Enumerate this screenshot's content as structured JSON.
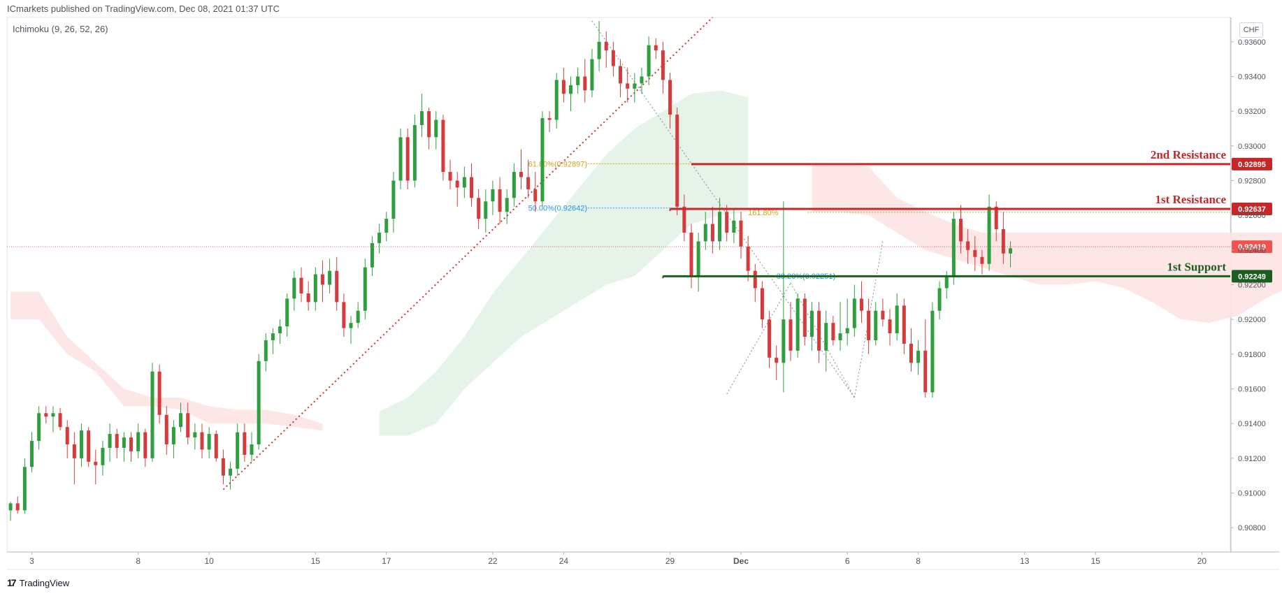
{
  "header": {
    "publisher": "ICmarkets published on TradingView.com, Dec 08, 2021 01:37 UTC",
    "indicator": "Ichimoku (9, 26, 52, 26)",
    "currency": "CHF"
  },
  "footer": {
    "brand": "TradingView",
    "logo_text": "17"
  },
  "colors": {
    "bull": "#26a69a",
    "bear": "#ef5350",
    "bull_candle": "#2e9e3e",
    "bear_candle": "#d63b3b",
    "resistance": "#c62828",
    "support": "#1b5e20",
    "fib_gold": "#d4a017",
    "fib_blue": "#2196f3",
    "cloud_green": "#e3f2e6",
    "cloud_red": "#fde3e3",
    "grid": "#f0f3fa",
    "axis_text": "#50535e"
  },
  "chart_data": {
    "type": "candlestick",
    "price_axis": {
      "ticks": [
        "0.93600",
        "0.93400",
        "0.93200",
        "0.93000",
        "0.92800",
        "0.92600",
        "0.92400",
        "0.92200",
        "0.92000",
        "0.91800",
        "0.91600",
        "0.91400",
        "0.91200",
        "0.91000",
        "0.90800"
      ],
      "ylim": [
        0.9066,
        0.9374
      ]
    },
    "time_axis": {
      "labels": [
        {
          "text": "3",
          "index": 3
        },
        {
          "text": "8",
          "index": 18
        },
        {
          "text": "10",
          "index": 28
        },
        {
          "text": "15",
          "index": 43
        },
        {
          "text": "17",
          "index": 53
        },
        {
          "text": "22",
          "index": 68
        },
        {
          "text": "24",
          "index": 78
        },
        {
          "text": "29",
          "index": 93
        },
        {
          "text": "Dec",
          "index": 103
        },
        {
          "text": "6",
          "index": 118
        },
        {
          "text": "8",
          "index": 128
        },
        {
          "text": "13",
          "index": 143
        },
        {
          "text": "15",
          "index": 153
        },
        {
          "text": "20",
          "index": 168
        }
      ],
      "xlim": [
        -0.5,
        172
      ]
    },
    "levels": [
      {
        "name": "2nd Resistance",
        "price": 0.92895,
        "price_label": "0.92895",
        "color": "resistance",
        "start_index": 96
      },
      {
        "name": "1st Resistance",
        "price": 0.92637,
        "price_label": "0.92637",
        "color": "resistance",
        "start_index": 93
      },
      {
        "name": "1st Support",
        "price": 0.92249,
        "price_label": "0.92249",
        "color": "support",
        "start_index": 92
      }
    ],
    "last_price": {
      "price": 0.92419,
      "label": "0.92419"
    },
    "fib_labels": [
      {
        "text": "61.80%(0.92897)",
        "price": 0.92897,
        "color": "fib_gold",
        "index": 73,
        "end_index": 172
      },
      {
        "text": "50.00%(0.92642)",
        "price": 0.92642,
        "color": "fib_blue",
        "index": 73,
        "end_index": 95
      },
      {
        "text": "161.80%",
        "price": 0.92617,
        "color": "fib_gold",
        "index": 104,
        "end_index": 172
      },
      {
        "text": "38.20%(0.92251)",
        "price": 0.92251,
        "color": "fib_blue",
        "index": 108,
        "end_index": 117
      }
    ],
    "trendline": {
      "from": {
        "index": 30,
        "price": 0.9102
      },
      "to": {
        "index": 99,
        "price": 0.9374
      }
    },
    "fib_swing_lines": [
      {
        "from": {
          "index": 82,
          "price": 0.9372
        },
        "to": {
          "index": 119,
          "price": 0.9155
        }
      },
      {
        "from": {
          "index": 101,
          "price": 0.9157
        },
        "to": {
          "index": 110,
          "price": 0.9221
        }
      },
      {
        "from": {
          "index": 110,
          "price": 0.9221
        },
        "to": {
          "index": 119,
          "price": 0.9155
        }
      },
      {
        "from": {
          "index": 119,
          "price": 0.9155
        },
        "to": {
          "index": 123,
          "price": 0.9245
        }
      }
    ],
    "cloud": {
      "green": {
        "start_index": 52,
        "upper": [
          0.9147,
          0.9155,
          0.917,
          0.919,
          0.9215,
          0.9235,
          0.9255,
          0.9275,
          0.9295,
          0.931,
          0.932,
          0.933,
          0.9332,
          0.9328
        ],
        "lower": [
          0.9133,
          0.9133,
          0.914,
          0.916,
          0.9175,
          0.919,
          0.92,
          0.921,
          0.922,
          0.9225,
          0.924,
          0.9255,
          0.926,
          0.9262
        ]
      },
      "red": {
        "start_index": 113,
        "upper": [
          0.929,
          0.929,
          0.9288,
          0.927,
          0.9262,
          0.9255,
          0.925,
          0.925,
          0.925,
          0.925,
          0.925,
          0.925,
          0.925,
          0.925,
          0.925,
          0.925,
          0.925,
          0.925,
          0.925,
          0.925
        ],
        "lower": [
          0.9262,
          0.9262,
          0.926,
          0.925,
          0.924,
          0.9235,
          0.923,
          0.9225,
          0.922,
          0.922,
          0.9222,
          0.9218,
          0.921,
          0.92,
          0.9198,
          0.9202,
          0.9212,
          0.922,
          0.9225,
          0.9228
        ]
      }
    },
    "candles": [
      {
        "o": 0.909,
        "h": 0.9095,
        "l": 0.9084,
        "c": 0.9094
      },
      {
        "o": 0.9094,
        "h": 0.9098,
        "l": 0.9088,
        "c": 0.909
      },
      {
        "o": 0.909,
        "h": 0.912,
        "l": 0.9088,
        "c": 0.9115
      },
      {
        "o": 0.9115,
        "h": 0.9135,
        "l": 0.9112,
        "c": 0.913
      },
      {
        "o": 0.913,
        "h": 0.915,
        "l": 0.9125,
        "c": 0.9146
      },
      {
        "o": 0.9146,
        "h": 0.915,
        "l": 0.914,
        "c": 0.9144
      },
      {
        "o": 0.9144,
        "h": 0.915,
        "l": 0.9135,
        "c": 0.9146
      },
      {
        "o": 0.9146,
        "h": 0.9149,
        "l": 0.9136,
        "c": 0.9138
      },
      {
        "o": 0.9138,
        "h": 0.9142,
        "l": 0.912,
        "c": 0.9128
      },
      {
        "o": 0.9128,
        "h": 0.9135,
        "l": 0.9105,
        "c": 0.912
      },
      {
        "o": 0.912,
        "h": 0.914,
        "l": 0.9115,
        "c": 0.9136
      },
      {
        "o": 0.9136,
        "h": 0.9138,
        "l": 0.9115,
        "c": 0.9118
      },
      {
        "o": 0.9118,
        "h": 0.9125,
        "l": 0.9105,
        "c": 0.9116
      },
      {
        "o": 0.9116,
        "h": 0.913,
        "l": 0.911,
        "c": 0.9126
      },
      {
        "o": 0.9126,
        "h": 0.914,
        "l": 0.9118,
        "c": 0.9134
      },
      {
        "o": 0.9134,
        "h": 0.9137,
        "l": 0.912,
        "c": 0.9126
      },
      {
        "o": 0.9126,
        "h": 0.9135,
        "l": 0.9118,
        "c": 0.9132
      },
      {
        "o": 0.9132,
        "h": 0.9135,
        "l": 0.9118,
        "c": 0.9124
      },
      {
        "o": 0.9124,
        "h": 0.914,
        "l": 0.912,
        "c": 0.9135
      },
      {
        "o": 0.9135,
        "h": 0.9137,
        "l": 0.9115,
        "c": 0.912
      },
      {
        "o": 0.912,
        "h": 0.9175,
        "l": 0.9118,
        "c": 0.917
      },
      {
        "o": 0.917,
        "h": 0.9174,
        "l": 0.914,
        "c": 0.9145
      },
      {
        "o": 0.9145,
        "h": 0.915,
        "l": 0.9122,
        "c": 0.9128
      },
      {
        "o": 0.9128,
        "h": 0.9142,
        "l": 0.912,
        "c": 0.9138
      },
      {
        "o": 0.9138,
        "h": 0.9152,
        "l": 0.9135,
        "c": 0.9146
      },
      {
        "o": 0.9146,
        "h": 0.9152,
        "l": 0.9128,
        "c": 0.9132
      },
      {
        "o": 0.9132,
        "h": 0.914,
        "l": 0.9125,
        "c": 0.9135
      },
      {
        "o": 0.9135,
        "h": 0.914,
        "l": 0.912,
        "c": 0.9125
      },
      {
        "o": 0.9125,
        "h": 0.9138,
        "l": 0.912,
        "c": 0.9134
      },
      {
        "o": 0.9134,
        "h": 0.9136,
        "l": 0.9118,
        "c": 0.912
      },
      {
        "o": 0.912,
        "h": 0.9125,
        "l": 0.9105,
        "c": 0.911
      },
      {
        "o": 0.911,
        "h": 0.9118,
        "l": 0.9102,
        "c": 0.9114
      },
      {
        "o": 0.9114,
        "h": 0.914,
        "l": 0.911,
        "c": 0.9135
      },
      {
        "o": 0.9135,
        "h": 0.914,
        "l": 0.9118,
        "c": 0.9122
      },
      {
        "o": 0.9122,
        "h": 0.9135,
        "l": 0.9118,
        "c": 0.9128
      },
      {
        "o": 0.9128,
        "h": 0.918,
        "l": 0.9125,
        "c": 0.9176
      },
      {
        "o": 0.9176,
        "h": 0.9192,
        "l": 0.917,
        "c": 0.9188
      },
      {
        "o": 0.9188,
        "h": 0.9195,
        "l": 0.918,
        "c": 0.9192
      },
      {
        "o": 0.9192,
        "h": 0.92,
        "l": 0.9186,
        "c": 0.9196
      },
      {
        "o": 0.9196,
        "h": 0.9215,
        "l": 0.919,
        "c": 0.9212
      },
      {
        "o": 0.9212,
        "h": 0.9228,
        "l": 0.9205,
        "c": 0.9224
      },
      {
        "o": 0.9224,
        "h": 0.923,
        "l": 0.921,
        "c": 0.9215
      },
      {
        "o": 0.9215,
        "h": 0.9222,
        "l": 0.9205,
        "c": 0.921
      },
      {
        "o": 0.921,
        "h": 0.923,
        "l": 0.9205,
        "c": 0.9226
      },
      {
        "o": 0.9226,
        "h": 0.9234,
        "l": 0.921,
        "c": 0.922
      },
      {
        "o": 0.922,
        "h": 0.9235,
        "l": 0.9215,
        "c": 0.9228
      },
      {
        "o": 0.9228,
        "h": 0.9236,
        "l": 0.9205,
        "c": 0.921
      },
      {
        "o": 0.921,
        "h": 0.9215,
        "l": 0.919,
        "c": 0.9195
      },
      {
        "o": 0.9195,
        "h": 0.9202,
        "l": 0.9186,
        "c": 0.9198
      },
      {
        "o": 0.9198,
        "h": 0.921,
        "l": 0.9195,
        "c": 0.9205
      },
      {
        "o": 0.9205,
        "h": 0.9235,
        "l": 0.92,
        "c": 0.923
      },
      {
        "o": 0.923,
        "h": 0.9248,
        "l": 0.9225,
        "c": 0.9244
      },
      {
        "o": 0.9244,
        "h": 0.9255,
        "l": 0.9238,
        "c": 0.925
      },
      {
        "o": 0.925,
        "h": 0.9262,
        "l": 0.9245,
        "c": 0.9258
      },
      {
        "o": 0.9258,
        "h": 0.9285,
        "l": 0.925,
        "c": 0.928
      },
      {
        "o": 0.928,
        "h": 0.931,
        "l": 0.9275,
        "c": 0.9305
      },
      {
        "o": 0.9305,
        "h": 0.931,
        "l": 0.9275,
        "c": 0.928
      },
      {
        "o": 0.928,
        "h": 0.9318,
        "l": 0.9276,
        "c": 0.9312
      },
      {
        "o": 0.9312,
        "h": 0.933,
        "l": 0.9305,
        "c": 0.932
      },
      {
        "o": 0.932,
        "h": 0.9322,
        "l": 0.9298,
        "c": 0.9305
      },
      {
        "o": 0.9305,
        "h": 0.932,
        "l": 0.9298,
        "c": 0.9315
      },
      {
        "o": 0.9315,
        "h": 0.9318,
        "l": 0.928,
        "c": 0.9285
      },
      {
        "o": 0.9285,
        "h": 0.9292,
        "l": 0.9275,
        "c": 0.928
      },
      {
        "o": 0.928,
        "h": 0.9285,
        "l": 0.9265,
        "c": 0.9276
      },
      {
        "o": 0.9276,
        "h": 0.9288,
        "l": 0.927,
        "c": 0.9282
      },
      {
        "o": 0.9282,
        "h": 0.929,
        "l": 0.9265,
        "c": 0.927
      },
      {
        "o": 0.927,
        "h": 0.9275,
        "l": 0.9252,
        "c": 0.9258
      },
      {
        "o": 0.9258,
        "h": 0.9275,
        "l": 0.925,
        "c": 0.9268
      },
      {
        "o": 0.9268,
        "h": 0.928,
        "l": 0.926,
        "c": 0.9275
      },
      {
        "o": 0.9275,
        "h": 0.9282,
        "l": 0.9255,
        "c": 0.9262
      },
      {
        "o": 0.9262,
        "h": 0.9275,
        "l": 0.9255,
        "c": 0.927
      },
      {
        "o": 0.927,
        "h": 0.929,
        "l": 0.9265,
        "c": 0.9285
      },
      {
        "o": 0.9285,
        "h": 0.9298,
        "l": 0.9275,
        "c": 0.9282
      },
      {
        "o": 0.9282,
        "h": 0.9292,
        "l": 0.927,
        "c": 0.9275
      },
      {
        "o": 0.9275,
        "h": 0.9285,
        "l": 0.9262,
        "c": 0.9268
      },
      {
        "o": 0.9268,
        "h": 0.932,
        "l": 0.9265,
        "c": 0.9316
      },
      {
        "o": 0.9316,
        "h": 0.932,
        "l": 0.9308,
        "c": 0.9315
      },
      {
        "o": 0.9315,
        "h": 0.9342,
        "l": 0.931,
        "c": 0.9338
      },
      {
        "o": 0.9338,
        "h": 0.9345,
        "l": 0.9325,
        "c": 0.933
      },
      {
        "o": 0.933,
        "h": 0.934,
        "l": 0.932,
        "c": 0.9335
      },
      {
        "o": 0.9335,
        "h": 0.9345,
        "l": 0.933,
        "c": 0.934
      },
      {
        "o": 0.934,
        "h": 0.935,
        "l": 0.9325,
        "c": 0.9332
      },
      {
        "o": 0.9332,
        "h": 0.9356,
        "l": 0.9328,
        "c": 0.935
      },
      {
        "o": 0.935,
        "h": 0.9372,
        "l": 0.9343,
        "c": 0.936
      },
      {
        "o": 0.936,
        "h": 0.9366,
        "l": 0.9345,
        "c": 0.9355
      },
      {
        "o": 0.9355,
        "h": 0.936,
        "l": 0.934,
        "c": 0.9346
      },
      {
        "o": 0.9346,
        "h": 0.935,
        "l": 0.9328,
        "c": 0.9336
      },
      {
        "o": 0.9336,
        "h": 0.9345,
        "l": 0.9325,
        "c": 0.9333
      },
      {
        "o": 0.9333,
        "h": 0.9342,
        "l": 0.9325,
        "c": 0.9336
      },
      {
        "o": 0.9336,
        "h": 0.9345,
        "l": 0.933,
        "c": 0.934
      },
      {
        "o": 0.934,
        "h": 0.9363,
        "l": 0.9335,
        "c": 0.9358
      },
      {
        "o": 0.9358,
        "h": 0.9362,
        "l": 0.935,
        "c": 0.9355
      },
      {
        "o": 0.9355,
        "h": 0.936,
        "l": 0.933,
        "c": 0.9338
      },
      {
        "o": 0.9338,
        "h": 0.9342,
        "l": 0.931,
        "c": 0.9318
      },
      {
        "o": 0.9318,
        "h": 0.9322,
        "l": 0.926,
        "c": 0.9265
      },
      {
        "o": 0.9265,
        "h": 0.9272,
        "l": 0.9245,
        "c": 0.925
      },
      {
        "o": 0.925,
        "h": 0.9255,
        "l": 0.9218,
        "c": 0.9225
      },
      {
        "o": 0.9225,
        "h": 0.925,
        "l": 0.9216,
        "c": 0.9245
      },
      {
        "o": 0.9245,
        "h": 0.9262,
        "l": 0.924,
        "c": 0.9255
      },
      {
        "o": 0.9255,
        "h": 0.9265,
        "l": 0.9238,
        "c": 0.9245
      },
      {
        "o": 0.9245,
        "h": 0.927,
        "l": 0.924,
        "c": 0.9262
      },
      {
        "o": 0.9262,
        "h": 0.9266,
        "l": 0.9245,
        "c": 0.925
      },
      {
        "o": 0.925,
        "h": 0.9264,
        "l": 0.9244,
        "c": 0.9257
      },
      {
        "o": 0.9257,
        "h": 0.9262,
        "l": 0.9235,
        "c": 0.9242
      },
      {
        "o": 0.9242,
        "h": 0.9248,
        "l": 0.9222,
        "c": 0.9228
      },
      {
        "o": 0.9228,
        "h": 0.9232,
        "l": 0.921,
        "c": 0.9218
      },
      {
        "o": 0.9218,
        "h": 0.9222,
        "l": 0.9195,
        "c": 0.92
      },
      {
        "o": 0.92,
        "h": 0.9205,
        "l": 0.9172,
        "c": 0.9178
      },
      {
        "o": 0.9178,
        "h": 0.9185,
        "l": 0.9165,
        "c": 0.9175
      },
      {
        "o": 0.9175,
        "h": 0.9268,
        "l": 0.9158,
        "c": 0.92
      },
      {
        "o": 0.92,
        "h": 0.921,
        "l": 0.9176,
        "c": 0.9182
      },
      {
        "o": 0.9182,
        "h": 0.9215,
        "l": 0.9178,
        "c": 0.9212
      },
      {
        "o": 0.9212,
        "h": 0.9215,
        "l": 0.9185,
        "c": 0.919
      },
      {
        "o": 0.919,
        "h": 0.921,
        "l": 0.9182,
        "c": 0.9205
      },
      {
        "o": 0.9205,
        "h": 0.921,
        "l": 0.9175,
        "c": 0.9182
      },
      {
        "o": 0.9182,
        "h": 0.9205,
        "l": 0.917,
        "c": 0.9198
      },
      {
        "o": 0.9198,
        "h": 0.9202,
        "l": 0.9185,
        "c": 0.9188
      },
      {
        "o": 0.9188,
        "h": 0.921,
        "l": 0.9182,
        "c": 0.9192
      },
      {
        "o": 0.9192,
        "h": 0.9212,
        "l": 0.9185,
        "c": 0.9195
      },
      {
        "o": 0.9195,
        "h": 0.922,
        "l": 0.919,
        "c": 0.9212
      },
      {
        "o": 0.9212,
        "h": 0.9222,
        "l": 0.9198,
        "c": 0.9205
      },
      {
        "o": 0.9205,
        "h": 0.9212,
        "l": 0.918,
        "c": 0.9188
      },
      {
        "o": 0.9188,
        "h": 0.921,
        "l": 0.9185,
        "c": 0.9205
      },
      {
        "o": 0.9205,
        "h": 0.9212,
        "l": 0.9196,
        "c": 0.92
      },
      {
        "o": 0.92,
        "h": 0.9206,
        "l": 0.9185,
        "c": 0.9192
      },
      {
        "o": 0.9192,
        "h": 0.9215,
        "l": 0.9188,
        "c": 0.9208
      },
      {
        "o": 0.9208,
        "h": 0.9212,
        "l": 0.918,
        "c": 0.9186
      },
      {
        "o": 0.9186,
        "h": 0.9195,
        "l": 0.917,
        "c": 0.9175
      },
      {
        "o": 0.9175,
        "h": 0.9188,
        "l": 0.9168,
        "c": 0.9182
      },
      {
        "o": 0.9182,
        "h": 0.92,
        "l": 0.9155,
        "c": 0.9158
      },
      {
        "o": 0.9158,
        "h": 0.921,
        "l": 0.9155,
        "c": 0.9205
      },
      {
        "o": 0.9205,
        "h": 0.9222,
        "l": 0.92,
        "c": 0.9218
      },
      {
        "o": 0.9218,
        "h": 0.9228,
        "l": 0.9212,
        "c": 0.9225
      },
      {
        "o": 0.9225,
        "h": 0.9262,
        "l": 0.922,
        "c": 0.9258
      },
      {
        "o": 0.9258,
        "h": 0.9266,
        "l": 0.9238,
        "c": 0.9245
      },
      {
        "o": 0.9245,
        "h": 0.9252,
        "l": 0.9232,
        "c": 0.924
      },
      {
        "o": 0.924,
        "h": 0.9248,
        "l": 0.9228,
        "c": 0.9236
      },
      {
        "o": 0.9236,
        "h": 0.924,
        "l": 0.9226,
        "c": 0.9232
      },
      {
        "o": 0.9232,
        "h": 0.9272,
        "l": 0.9228,
        "c": 0.9265
      },
      {
        "o": 0.9265,
        "h": 0.9268,
        "l": 0.9245,
        "c": 0.9252
      },
      {
        "o": 0.9252,
        "h": 0.9262,
        "l": 0.9232,
        "c": 0.9238
      },
      {
        "o": 0.9238,
        "h": 0.9245,
        "l": 0.923,
        "c": 0.9241
      }
    ]
  }
}
